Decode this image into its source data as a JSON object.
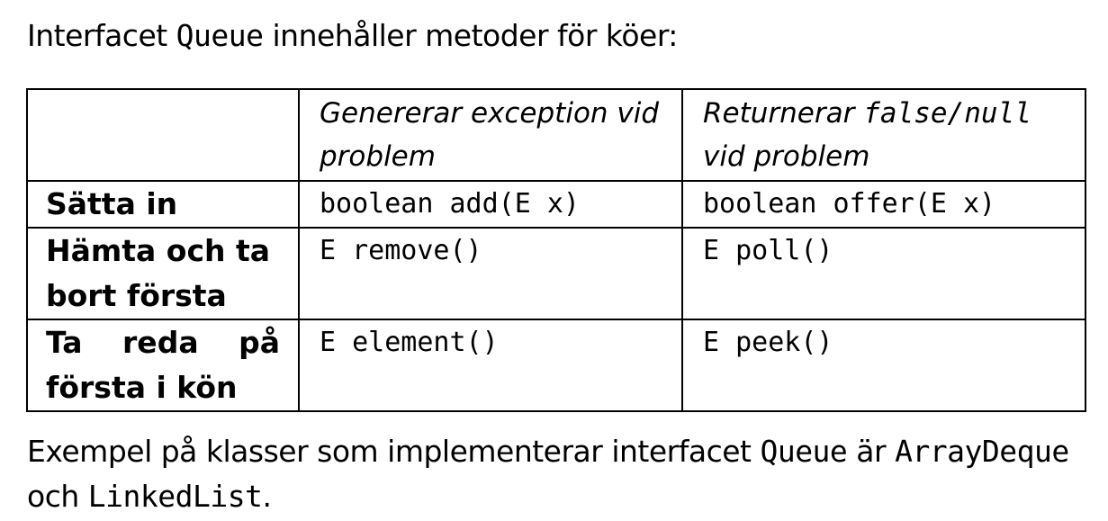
{
  "intro": {
    "before": "Interfacet ",
    "code": "Queue",
    "after": " innehåller metoder för köer:"
  },
  "table": {
    "header": {
      "col2": "Genererar exception vid problem",
      "col3_before": "Returnerar ",
      "col3_code": "false/null",
      "col3_after": "vid problem"
    },
    "rows": [
      {
        "label": "Sätta in",
        "exception_method": "boolean add(E x)",
        "return_method": "boolean offer(E x)"
      },
      {
        "label": "Hämta och ta bort första",
        "exception_method": "E remove()",
        "return_method": "E poll()"
      },
      {
        "label_line1": "Ta reda på",
        "label_line2": "första i kön",
        "exception_method": "E element()",
        "return_method": "E peek()"
      }
    ]
  },
  "outro": {
    "line1_before": "Exempel på klasser som implementerar interfacet ",
    "line1_code1": "Queue",
    "line1_mid": " är ",
    "line1_code2": "ArrayDeque",
    "line2_before": "och ",
    "line2_code": "LinkedList",
    "line2_after": "."
  }
}
